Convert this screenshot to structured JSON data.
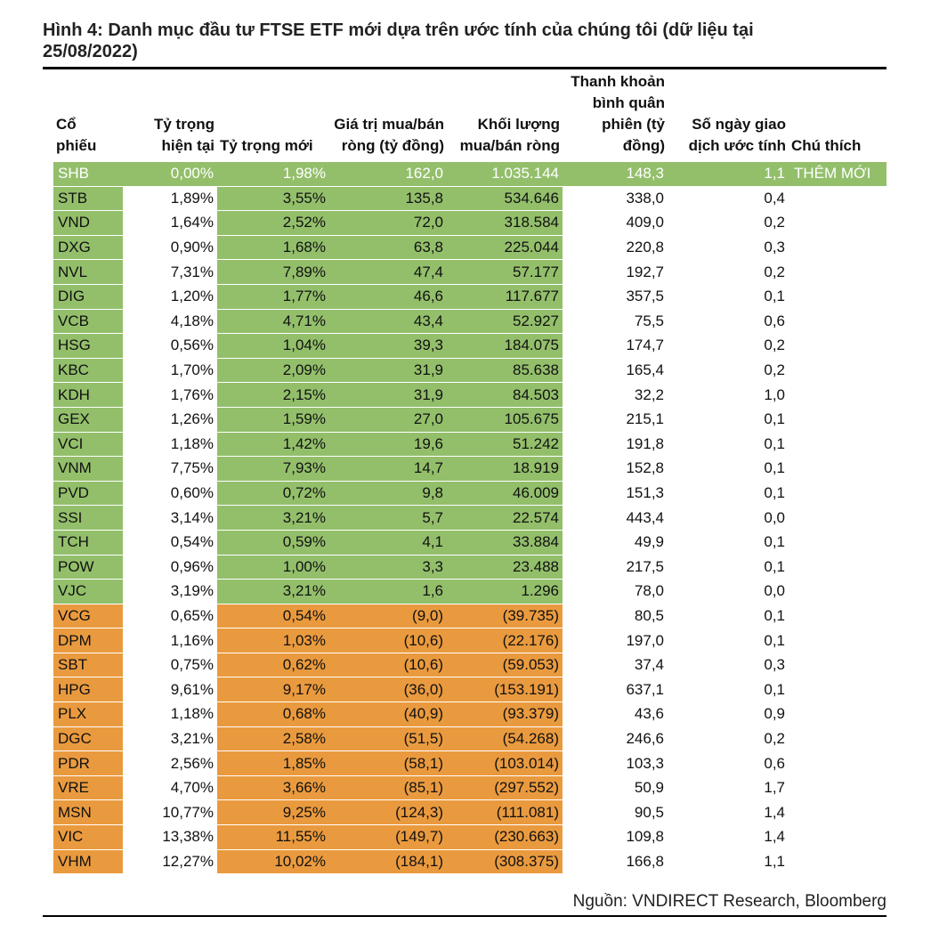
{
  "title": "Hình 4: Danh mục đầu tư FTSE ETF mới dựa trên ước tính của chúng tôi (dữ liệu tại 25/08/2022)",
  "headers": {
    "ticker": "Cổ phiếu",
    "current_weight": "Tỷ trọng hiện tại",
    "new_weight": "Tỷ trọng mới",
    "net_value": "Giá trị mua/bán ròng (tỷ đồng)",
    "net_volume": "Khối lượng mua/bán ròng",
    "liquidity": "Thanh khoản bình quân phiên (tỷ đồng)",
    "days": "Số ngày giao dịch ước tính",
    "note": "Chú thích"
  },
  "rows": [
    {
      "ticker": "SHB",
      "current": "0,00%",
      "new": "1,98%",
      "value": "162,0",
      "volume": "1.035.144",
      "liquidity": "148,3",
      "days": "1,1",
      "note": "THÊM MỚI",
      "group": "added"
    },
    {
      "ticker": "STB",
      "current": "1,89%",
      "new": "3,55%",
      "value": "135,8",
      "volume": "534.646",
      "liquidity": "338,0",
      "days": "0,4",
      "note": "",
      "group": "green"
    },
    {
      "ticker": "VND",
      "current": "1,64%",
      "new": "2,52%",
      "value": "72,0",
      "volume": "318.584",
      "liquidity": "409,0",
      "days": "0,2",
      "note": "",
      "group": "green"
    },
    {
      "ticker": "DXG",
      "current": "0,90%",
      "new": "1,68%",
      "value": "63,8",
      "volume": "225.044",
      "liquidity": "220,8",
      "days": "0,3",
      "note": "",
      "group": "green"
    },
    {
      "ticker": "NVL",
      "current": "7,31%",
      "new": "7,89%",
      "value": "47,4",
      "volume": "57.177",
      "liquidity": "192,7",
      "days": "0,2",
      "note": "",
      "group": "green"
    },
    {
      "ticker": "DIG",
      "current": "1,20%",
      "new": "1,77%",
      "value": "46,6",
      "volume": "117.677",
      "liquidity": "357,5",
      "days": "0,1",
      "note": "",
      "group": "green"
    },
    {
      "ticker": "VCB",
      "current": "4,18%",
      "new": "4,71%",
      "value": "43,4",
      "volume": "52.927",
      "liquidity": "75,5",
      "days": "0,6",
      "note": "",
      "group": "green"
    },
    {
      "ticker": "HSG",
      "current": "0,56%",
      "new": "1,04%",
      "value": "39,3",
      "volume": "184.075",
      "liquidity": "174,7",
      "days": "0,2",
      "note": "",
      "group": "green"
    },
    {
      "ticker": "KBC",
      "current": "1,70%",
      "new": "2,09%",
      "value": "31,9",
      "volume": "85.638",
      "liquidity": "165,4",
      "days": "0,2",
      "note": "",
      "group": "green"
    },
    {
      "ticker": "KDH",
      "current": "1,76%",
      "new": "2,15%",
      "value": "31,9",
      "volume": "84.503",
      "liquidity": "32,2",
      "days": "1,0",
      "note": "",
      "group": "green"
    },
    {
      "ticker": "GEX",
      "current": "1,26%",
      "new": "1,59%",
      "value": "27,0",
      "volume": "105.675",
      "liquidity": "215,1",
      "days": "0,1",
      "note": "",
      "group": "green"
    },
    {
      "ticker": "VCI",
      "current": "1,18%",
      "new": "1,42%",
      "value": "19,6",
      "volume": "51.242",
      "liquidity": "191,8",
      "days": "0,1",
      "note": "",
      "group": "green"
    },
    {
      "ticker": "VNM",
      "current": "7,75%",
      "new": "7,93%",
      "value": "14,7",
      "volume": "18.919",
      "liquidity": "152,8",
      "days": "0,1",
      "note": "",
      "group": "green"
    },
    {
      "ticker": "PVD",
      "current": "0,60%",
      "new": "0,72%",
      "value": "9,8",
      "volume": "46.009",
      "liquidity": "151,3",
      "days": "0,1",
      "note": "",
      "group": "green"
    },
    {
      "ticker": "SSI",
      "current": "3,14%",
      "new": "3,21%",
      "value": "5,7",
      "volume": "22.574",
      "liquidity": "443,4",
      "days": "0,0",
      "note": "",
      "group": "green"
    },
    {
      "ticker": "TCH",
      "current": "0,54%",
      "new": "0,59%",
      "value": "4,1",
      "volume": "33.884",
      "liquidity": "49,9",
      "days": "0,1",
      "note": "",
      "group": "green"
    },
    {
      "ticker": "POW",
      "current": "0,96%",
      "new": "1,00%",
      "value": "3,3",
      "volume": "23.488",
      "liquidity": "217,5",
      "days": "0,1",
      "note": "",
      "group": "green"
    },
    {
      "ticker": "VJC",
      "current": "3,19%",
      "new": "3,21%",
      "value": "1,6",
      "volume": "1.296",
      "liquidity": "78,0",
      "days": "0,0",
      "note": "",
      "group": "green"
    },
    {
      "ticker": "VCG",
      "current": "0,65%",
      "new": "0,54%",
      "value": "(9,0)",
      "volume": "(39.735)",
      "liquidity": "80,5",
      "days": "0,1",
      "note": "",
      "group": "orange"
    },
    {
      "ticker": "DPM",
      "current": "1,16%",
      "new": "1,03%",
      "value": "(10,6)",
      "volume": "(22.176)",
      "liquidity": "197,0",
      "days": "0,1",
      "note": "",
      "group": "orange"
    },
    {
      "ticker": "SBT",
      "current": "0,75%",
      "new": "0,62%",
      "value": "(10,6)",
      "volume": "(59.053)",
      "liquidity": "37,4",
      "days": "0,3",
      "note": "",
      "group": "orange"
    },
    {
      "ticker": "HPG",
      "current": "9,61%",
      "new": "9,17%",
      "value": "(36,0)",
      "volume": "(153.191)",
      "liquidity": "637,1",
      "days": "0,1",
      "note": "",
      "group": "orange"
    },
    {
      "ticker": "PLX",
      "current": "1,18%",
      "new": "0,68%",
      "value": "(40,9)",
      "volume": "(93.379)",
      "liquidity": "43,6",
      "days": "0,9",
      "note": "",
      "group": "orange"
    },
    {
      "ticker": "DGC",
      "current": "3,21%",
      "new": "2,58%",
      "value": "(51,5)",
      "volume": "(54.268)",
      "liquidity": "246,6",
      "days": "0,2",
      "note": "",
      "group": "orange"
    },
    {
      "ticker": "PDR",
      "current": "2,56%",
      "new": "1,85%",
      "value": "(58,1)",
      "volume": "(103.014)",
      "liquidity": "103,3",
      "days": "0,6",
      "note": "",
      "group": "orange"
    },
    {
      "ticker": "VRE",
      "current": "4,70%",
      "new": "3,66%",
      "value": "(85,1)",
      "volume": "(297.552)",
      "liquidity": "50,9",
      "days": "1,7",
      "note": "",
      "group": "orange"
    },
    {
      "ticker": "MSN",
      "current": "10,77%",
      "new": "9,25%",
      "value": "(124,3)",
      "volume": "(111.081)",
      "liquidity": "90,5",
      "days": "1,4",
      "note": "",
      "group": "orange"
    },
    {
      "ticker": "VIC",
      "current": "13,38%",
      "new": "11,55%",
      "value": "(149,7)",
      "volume": "(230.663)",
      "liquidity": "109,8",
      "days": "1,4",
      "note": "",
      "group": "orange"
    },
    {
      "ticker": "VHM",
      "current": "12,27%",
      "new": "10,02%",
      "value": "(184,1)",
      "volume": "(308.375)",
      "liquidity": "166,8",
      "days": "1,1",
      "note": "",
      "group": "orange"
    }
  ],
  "colors": {
    "green": "#93bf6b",
    "orange": "#ea9a3e"
  },
  "source": "Nguồn: VNDIRECT Research, Bloomberg"
}
